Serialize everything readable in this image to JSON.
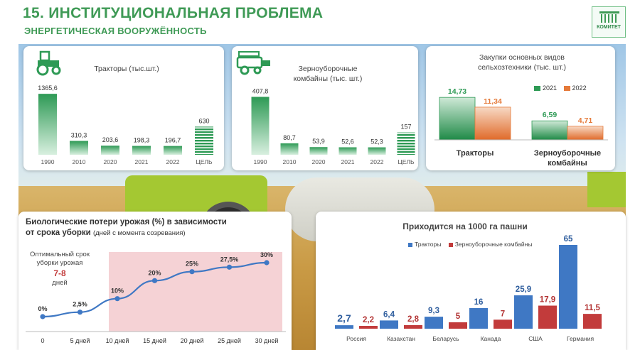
{
  "header": {
    "title": "15. ИНСТИТУЦИОНАЛЬНАЯ ПРОБЛЕМА",
    "subtitle": "ЭНЕРГЕТИЧЕСКАЯ ВООРУЖЁННОСТЬ",
    "logo_text": "КОМИТЕТ"
  },
  "colors": {
    "green": "#2e9a55",
    "orange": "#e57a3a",
    "blue": "#3f78c4",
    "red": "#c23b3b",
    "pink_zone": "#f3c7cb",
    "title_green": "#3f9a56"
  },
  "icons": [
    "tractor-icon",
    "combine-icon",
    "logo-building-icon"
  ],
  "chart_data": [
    {
      "id": "tractors",
      "type": "bar",
      "title": "Тракторы (тыс.шт.)",
      "categories": [
        "1990",
        "2010",
        "2020",
        "2021",
        "2022",
        "ЦЕЛЬ"
      ],
      "values": [
        1365.6,
        310.3,
        203.6,
        198.3,
        196.7,
        630
      ],
      "labels": [
        "1365,6",
        "310,3",
        "203,6",
        "198,3",
        "196,7",
        "630"
      ],
      "ylim": [
        0,
        1400
      ]
    },
    {
      "id": "combines",
      "type": "bar",
      "title": "Зерноуборочные комбайны (тыс. шт.)",
      "categories": [
        "1990",
        "2010",
        "2020",
        "2021",
        "2022",
        "ЦЕЛЬ"
      ],
      "values": [
        407.8,
        80.7,
        53.9,
        52.6,
        52.3,
        157
      ],
      "labels": [
        "407,8",
        "80,7",
        "53,9",
        "52,6",
        "52,3",
        "157"
      ],
      "ylim": [
        0,
        420
      ]
    },
    {
      "id": "purchases",
      "type": "bar",
      "title": "Закупки основных видов сельхозтехники (тыс. шт.)",
      "categories": [
        "Тракторы",
        "Зерноуборочные комбайны"
      ],
      "series": [
        {
          "name": "2021",
          "values": [
            14.73,
            6.59
          ],
          "labels": [
            "14,73",
            "6,59"
          ]
        },
        {
          "name": "2022",
          "values": [
            11.34,
            4.71
          ],
          "labels": [
            "11,34",
            "4,71"
          ]
        }
      ],
      "ylim": [
        0,
        16
      ]
    },
    {
      "id": "losses",
      "type": "line",
      "title": "Биологические потери урожая (%) в зависимости от срока уборки",
      "title_note": "(дней с момента созревания)",
      "x": [
        0,
        5,
        10,
        15,
        20,
        25,
        30
      ],
      "x_labels": [
        "0",
        "5 дней",
        "10 дней",
        "15 дней",
        "20 дней",
        "25 дней",
        "30 дней"
      ],
      "y": [
        0,
        2.5,
        10,
        20,
        25,
        27.5,
        30
      ],
      "labels": [
        "0%",
        "2,5%",
        "10%",
        "20%",
        "25%",
        "27,5%",
        "30%"
      ],
      "ylim": [
        0,
        30
      ],
      "annotation": {
        "line1": "Оптимальный срок",
        "line2": "уборки урожая",
        "range": "7-8",
        "unit": "дней"
      }
    },
    {
      "id": "per1000",
      "type": "bar",
      "title": "Приходится на 1000 га пашни",
      "categories": [
        "Россия",
        "Казахстан",
        "Беларусь",
        "Канада",
        "США",
        "Германия"
      ],
      "series": [
        {
          "name": "Тракторы",
          "values": [
            2.7,
            6.4,
            9.3,
            16,
            25.9,
            65
          ],
          "labels": [
            "2,7",
            "6,4",
            "9,3",
            "16",
            "25,9",
            "65"
          ]
        },
        {
          "name": "Зерноуборочные комбайны",
          "values": [
            2.2,
            2.8,
            5,
            7,
            17.9,
            11.5
          ],
          "labels": [
            "2,2",
            "2,8",
            "5",
            "7",
            "17,9",
            "11,5"
          ]
        }
      ],
      "ylim": [
        0,
        65
      ],
      "legend": "top"
    }
  ]
}
